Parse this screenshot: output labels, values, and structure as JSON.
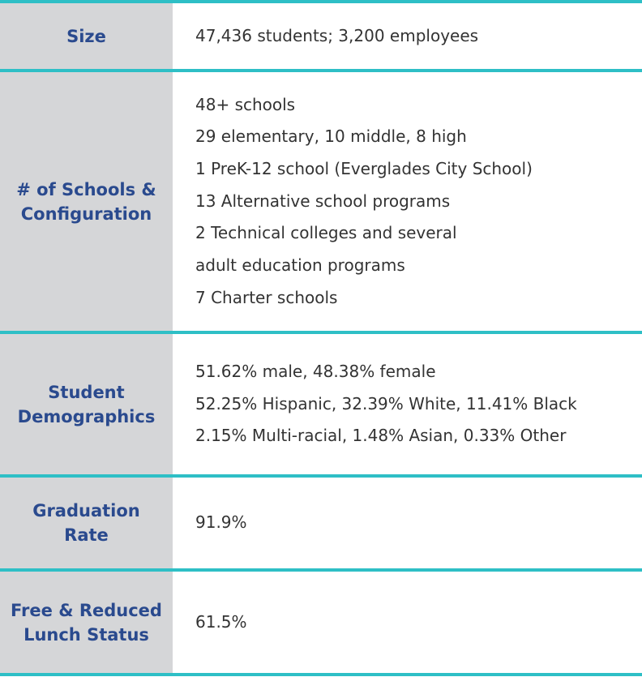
{
  "accent_color": "#2ebfc6",
  "label_color": "#2a4a8e",
  "label_bg_color": "#d5d6d8",
  "rows": [
    {
      "label": "Size",
      "values": [
        "47,436 students; 3,200 employees"
      ]
    },
    {
      "label": "# of Schools &\nConfiguration",
      "values": [
        "48+ schools",
        "29 elementary, 10 middle, 8 high",
        "1 PreK-12 school (Everglades City School)",
        "13 Alternative school programs",
        "2 Technical colleges and several",
        "adult education programs",
        "7 Charter schools"
      ]
    },
    {
      "label": "Student\nDemographics",
      "values": [
        "51.62% male, 48.38% female",
        "52.25% Hispanic, 32.39% White, 11.41% Black",
        "2.15% Multi-racial, 1.48% Asian, 0.33% Other"
      ]
    },
    {
      "label": "Graduation\nRate",
      "values": [
        "91.9%"
      ]
    },
    {
      "label": "Free & Reduced\nLunch Status",
      "values": [
        "61.5%"
      ]
    }
  ]
}
